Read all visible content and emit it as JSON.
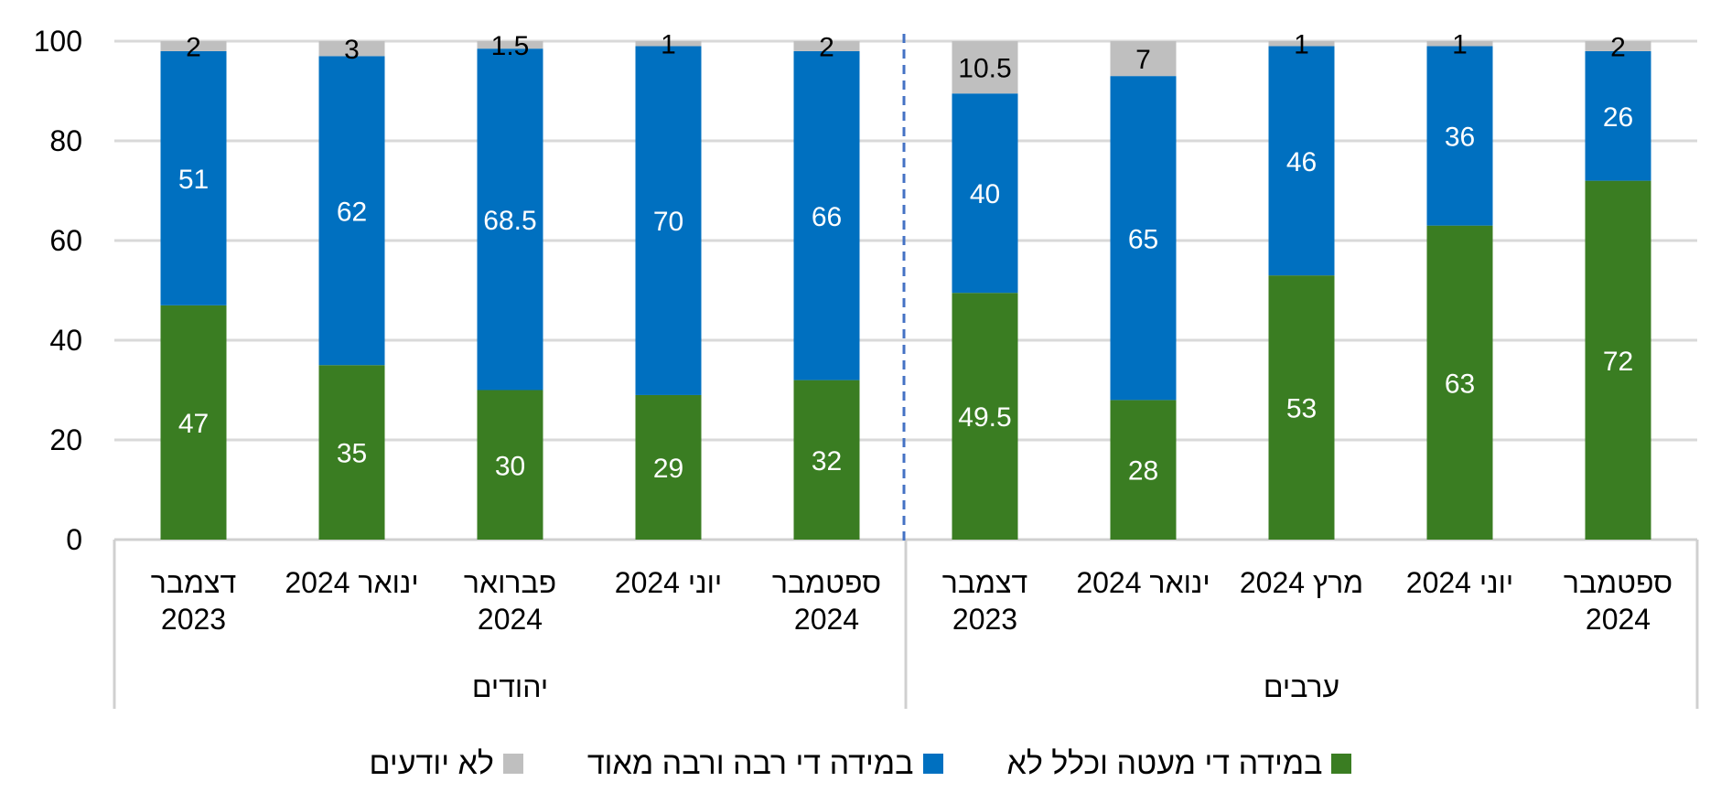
{
  "chart_data": {
    "type": "bar",
    "stacked": true,
    "ylim": [
      0,
      100
    ],
    "yticks": [
      0,
      20,
      40,
      60,
      80,
      100
    ],
    "grid": true,
    "legend_position": "bottom",
    "groups": [
      {
        "name": "יהודים",
        "categories": [
          [
            "דצמבר",
            "2023"
          ],
          [
            "ינואר 2024"
          ],
          [
            "פברואר",
            "2024"
          ],
          [
            "יוני 2024"
          ],
          [
            "ספטמבר",
            "2024"
          ]
        ],
        "values": {
          "little": [
            47,
            35,
            30,
            29,
            32
          ],
          "much": [
            51,
            62,
            68.5,
            70,
            66
          ],
          "unknown": [
            2,
            3,
            1.5,
            1,
            2
          ]
        }
      },
      {
        "name": "ערבים",
        "categories": [
          [
            "דצמבר",
            "2023"
          ],
          [
            "ינואר 2024"
          ],
          [
            "מרץ 2024"
          ],
          [
            "יוני 2024"
          ],
          [
            "ספטמבר",
            "2024"
          ]
        ],
        "values": {
          "little": [
            49.5,
            28,
            53,
            63,
            72
          ],
          "much": [
            40,
            65,
            46,
            36,
            26
          ],
          "unknown": [
            10.5,
            7,
            1,
            1,
            2
          ]
        }
      }
    ],
    "series": [
      {
        "key": "little",
        "name": "במידה די מעטה וכלל לא",
        "color": "#3a7d22",
        "label_color": "#ffffff"
      },
      {
        "key": "much",
        "name": "במידה די רבה ורבה מאוד",
        "color": "#0070c0",
        "label_color": "#ffffff"
      },
      {
        "key": "unknown",
        "name": "לא יודעים",
        "color": "#bfbfbf",
        "label_color": "#000000"
      }
    ]
  },
  "legend": {
    "items": [
      {
        "label": "במידה די מעטה וכלל לא",
        "color": "#3a7d22"
      },
      {
        "label": "במידה די רבה ורבה מאוד",
        "color": "#0070c0"
      },
      {
        "label": "לא יודעים",
        "color": "#bfbfbf"
      }
    ]
  }
}
